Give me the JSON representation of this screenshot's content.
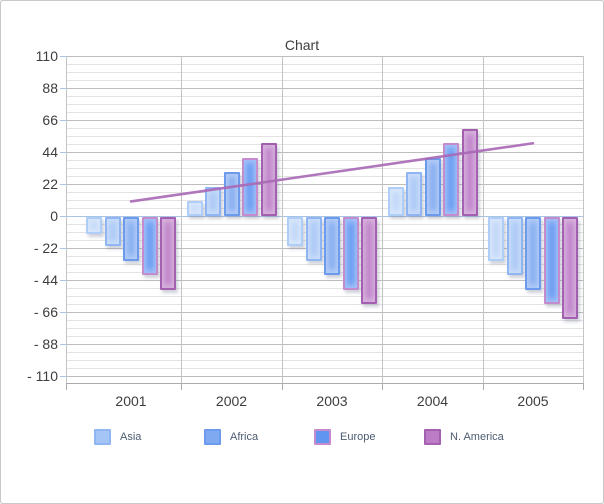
{
  "chart_data": {
    "type": "bar",
    "title": "Chart",
    "categories": [
      "2001",
      "2002",
      "2003",
      "2004",
      "2005"
    ],
    "series": [
      {
        "name": "",
        "in_legend": false,
        "fill": "#bdd5f8",
        "border": "#aecdf7",
        "values": [
          -12,
          10,
          -20,
          20,
          -30
        ]
      },
      {
        "name": "Asia",
        "in_legend": true,
        "fill": "#a5c5f6",
        "border": "#8fb6f2",
        "values": [
          -20,
          20,
          -30,
          30,
          -40
        ]
      },
      {
        "name": "Africa",
        "in_legend": true,
        "fill": "#7fa9f0",
        "border": "#6c9bed",
        "values": [
          -30,
          30,
          -40,
          40,
          -50
        ]
      },
      {
        "name": "Europe",
        "in_legend": true,
        "fill": "#6095f2",
        "border": "#c58ccd",
        "values": [
          -40,
          40,
          -50,
          50,
          -60
        ]
      },
      {
        "name": "N. America",
        "in_legend": true,
        "fill": "#bc7dc6",
        "border": "#a360b0",
        "values": [
          -50,
          50,
          -60,
          60,
          -70
        ]
      }
    ],
    "trendline": {
      "color": "#a868b6",
      "values": [
        10,
        20,
        30,
        40,
        50
      ]
    },
    "y_axis": {
      "min": -110,
      "max": 110,
      "major_step": 22,
      "minor_step": 5.5,
      "tick_labels": [
        "110",
        "88",
        "66",
        "44",
        "22",
        "0",
        "- 22",
        "- 44",
        "- 66",
        "- 88",
        "- 110"
      ]
    },
    "legend_position": "bottom",
    "grid": "on"
  }
}
